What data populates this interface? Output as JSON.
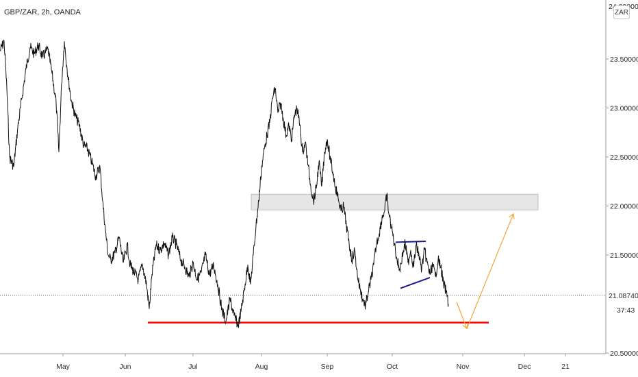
{
  "chart_data": {
    "type": "line",
    "title": "GBP/ZAR, 2h, OANDA",
    "currency": "ZAR",
    "x_ticks": [
      "May",
      "Jun",
      "Jul",
      "Aug",
      "Sep",
      "Oct",
      "Nov",
      "Dec",
      "21"
    ],
    "y_ticks": [
      "23.50000",
      "23.00000",
      "22.50000",
      "22.00000",
      "21.50000",
      "20.50000"
    ],
    "y_top_partial": "24.00000",
    "ylim": [
      20.5,
      24.0
    ],
    "last_price": "21.08740",
    "countdown": "37:43",
    "series": [
      {
        "values": [
          [
            0,
            23.58
          ],
          [
            6,
            23.68
          ],
          [
            10,
            23.2
          ],
          [
            14,
            22.5
          ],
          [
            20,
            22.4
          ],
          [
            26,
            22.8
          ],
          [
            32,
            23.1
          ],
          [
            38,
            23.4
          ],
          [
            44,
            23.62
          ],
          [
            50,
            23.55
          ],
          [
            56,
            23.64
          ],
          [
            62,
            23.52
          ],
          [
            66,
            23.56
          ],
          [
            70,
            23.6
          ],
          [
            76,
            23.35
          ],
          [
            82,
            23.05
          ],
          [
            86,
            22.55
          ],
          [
            90,
            23.25
          ],
          [
            94,
            23.68
          ],
          [
            98,
            23.4
          ],
          [
            104,
            23.08
          ],
          [
            110,
            22.92
          ],
          [
            116,
            22.82
          ],
          [
            122,
            22.62
          ],
          [
            128,
            22.58
          ],
          [
            134,
            22.45
          ],
          [
            140,
            22.3
          ],
          [
            146,
            22.4
          ],
          [
            150,
            22.05
          ],
          [
            154,
            21.75
          ],
          [
            158,
            21.5
          ],
          [
            162,
            21.45
          ],
          [
            168,
            21.52
          ],
          [
            174,
            21.68
          ],
          [
            180,
            21.42
          ],
          [
            186,
            21.6
          ],
          [
            190,
            21.4
          ],
          [
            196,
            21.32
          ],
          [
            202,
            21.25
          ],
          [
            208,
            21.4
          ],
          [
            214,
            21.2
          ],
          [
            218,
            20.95
          ],
          [
            222,
            21.3
          ],
          [
            228,
            21.6
          ],
          [
            234,
            21.55
          ],
          [
            240,
            21.62
          ],
          [
            246,
            21.5
          ],
          [
            252,
            21.68
          ],
          [
            258,
            21.6
          ],
          [
            264,
            21.45
          ],
          [
            270,
            21.38
          ],
          [
            276,
            21.28
          ],
          [
            282,
            21.42
          ],
          [
            288,
            21.25
          ],
          [
            294,
            21.32
          ],
          [
            300,
            21.5
          ],
          [
            306,
            21.3
          ],
          [
            312,
            21.4
          ],
          [
            318,
            21.2
          ],
          [
            324,
            20.95
          ],
          [
            330,
            20.82
          ],
          [
            336,
            21.05
          ],
          [
            342,
            20.88
          ],
          [
            348,
            20.78
          ],
          [
            352,
            20.92
          ],
          [
            358,
            21.2
          ],
          [
            362,
            21.4
          ],
          [
            366,
            21.2
          ],
          [
            370,
            21.5
          ],
          [
            374,
            21.8
          ],
          [
            378,
            22.05
          ],
          [
            382,
            22.38
          ],
          [
            386,
            22.58
          ],
          [
            390,
            22.72
          ],
          [
            394,
            22.85
          ],
          [
            398,
            23.1
          ],
          [
            402,
            23.2
          ],
          [
            406,
            22.95
          ],
          [
            410,
            23.05
          ],
          [
            414,
            22.88
          ],
          [
            418,
            22.72
          ],
          [
            422,
            22.82
          ],
          [
            426,
            22.68
          ],
          [
            430,
            22.92
          ],
          [
            434,
            23.0
          ],
          [
            438,
            22.82
          ],
          [
            442,
            22.55
          ],
          [
            446,
            22.65
          ],
          [
            450,
            22.42
          ],
          [
            454,
            22.2
          ],
          [
            458,
            22.05
          ],
          [
            462,
            22.18
          ],
          [
            466,
            22.45
          ],
          [
            470,
            22.2
          ],
          [
            474,
            22.55
          ],
          [
            478,
            22.68
          ],
          [
            482,
            22.5
          ],
          [
            486,
            22.35
          ],
          [
            490,
            22.2
          ],
          [
            494,
            22.08
          ],
          [
            498,
            21.95
          ],
          [
            502,
            22.0
          ],
          [
            506,
            21.8
          ],
          [
            510,
            21.62
          ],
          [
            514,
            21.45
          ],
          [
            518,
            21.55
          ],
          [
            522,
            21.3
          ],
          [
            526,
            21.15
          ],
          [
            530,
            21.05
          ],
          [
            534,
            20.98
          ],
          [
            538,
            21.12
          ],
          [
            542,
            21.25
          ],
          [
            546,
            21.4
          ],
          [
            550,
            21.62
          ],
          [
            554,
            21.72
          ],
          [
            558,
            21.88
          ],
          [
            562,
            21.95
          ],
          [
            565,
            22.12
          ],
          [
            568,
            21.92
          ],
          [
            572,
            21.78
          ],
          [
            576,
            21.62
          ],
          [
            580,
            21.45
          ],
          [
            584,
            21.35
          ],
          [
            588,
            21.5
          ],
          [
            592,
            21.62
          ],
          [
            596,
            21.42
          ],
          [
            600,
            21.55
          ],
          [
            604,
            21.38
          ],
          [
            608,
            21.6
          ],
          [
            612,
            21.5
          ],
          [
            616,
            21.35
          ],
          [
            620,
            21.55
          ],
          [
            624,
            21.42
          ],
          [
            628,
            21.3
          ],
          [
            632,
            21.4
          ],
          [
            636,
            21.28
          ],
          [
            640,
            21.45
          ],
          [
            644,
            21.38
          ],
          [
            648,
            21.2
          ],
          [
            652,
            21.12
          ],
          [
            655,
            21.0
          ]
        ]
      }
    ],
    "annotations": [
      {
        "type": "horizontal_line",
        "color": "#ff0000",
        "price": 20.81,
        "x_from": 216,
        "x_to": 714
      },
      {
        "type": "zone",
        "fill": "#e6e6e6",
        "price_top": 22.12,
        "price_bottom": 21.96,
        "x_from": 367,
        "x_to": 786
      },
      {
        "type": "line",
        "color": "#1a1a8c",
        "points": [
          [
            578,
            21.63
          ],
          [
            622,
            21.64
          ]
        ]
      },
      {
        "type": "line",
        "color": "#1a1a8c",
        "points": [
          [
            585,
            21.16
          ],
          [
            628,
            21.27
          ]
        ]
      },
      {
        "type": "arrow",
        "color": "#f7a534",
        "points": [
          [
            667,
            21.02
          ],
          [
            682,
            20.75
          ],
          [
            750,
            21.92
          ]
        ]
      }
    ],
    "colors": {
      "series": "#111111",
      "support": "#ff0000",
      "zone": "#e6e6e6",
      "triangle": "#1a1a8c",
      "projection": "#f7a534",
      "price_line": "#555555"
    }
  }
}
